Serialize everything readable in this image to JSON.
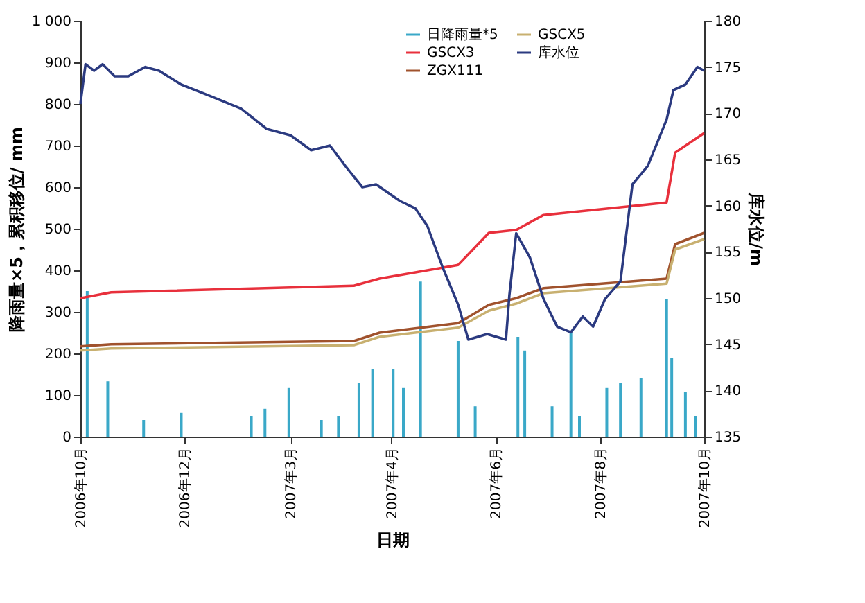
{
  "chart_data": {
    "type": "line",
    "xlabel": "日期",
    "ylabel": "降雨量×5，累积移位/ mm",
    "y2label": "库水位/m",
    "xlim": [
      "2006-10-01",
      "2007-10-01"
    ],
    "xticks": [
      {
        "value": "2006-10-01",
        "label": "2006年10月"
      },
      {
        "value": "2006-12-01",
        "label": "2006年12月"
      },
      {
        "value": "2007-02-01",
        "label": "2007年3月"
      },
      {
        "value": "2007-04-01",
        "label": "2007年4月"
      },
      {
        "value": "2007-06-01",
        "label": "2007年6月"
      },
      {
        "value": "2007-08-01",
        "label": "2007年8月"
      },
      {
        "value": "2007-10-01",
        "label": "2007年10月"
      }
    ],
    "ylim": [
      0,
      1000
    ],
    "yticks": [
      0,
      100,
      200,
      300,
      400,
      500,
      600,
      700,
      800,
      900,
      {
        "value": 1000,
        "label": "1 000"
      }
    ],
    "y2lim": [
      135,
      180
    ],
    "y2ticks": [
      135,
      140,
      145,
      150,
      155,
      160,
      165,
      170,
      175,
      180
    ],
    "legend": "top right",
    "grid": false,
    "marker": "none",
    "line_style": "solid",
    "series": [
      {
        "name": "日降雨量*5",
        "type": "bar",
        "color": "#3aa8c8",
        "x": [
          "2006-10-05",
          "2006-10-17",
          "2006-11-07",
          "2006-11-29",
          "2007-01-09",
          "2007-01-17",
          "2007-01-31",
          "2007-02-19",
          "2007-03-01",
          "2007-03-13",
          "2007-03-21",
          "2007-04-02",
          "2007-04-08",
          "2007-04-18",
          "2007-05-10",
          "2007-05-20",
          "2007-06-14",
          "2007-06-18",
          "2007-07-04",
          "2007-07-15",
          "2007-07-20",
          "2007-08-05",
          "2007-08-13",
          "2007-08-25",
          "2007-09-09",
          "2007-09-12",
          "2007-09-20",
          "2007-09-26"
        ],
        "values": [
          350,
          133,
          40,
          57,
          50,
          67,
          117,
          40,
          50,
          130,
          163,
          163,
          117,
          373,
          230,
          73,
          240,
          207,
          73,
          250,
          50,
          117,
          130,
          140,
          330,
          190,
          107,
          50
        ]
      },
      {
        "name": "GSCX3",
        "color": "#e8303c",
        "x": [
          "2006-10-01",
          "2006-10-19",
          "2007-03-10",
          "2007-03-25",
          "2007-05-10",
          "2007-05-28",
          "2007-06-13",
          "2007-06-29",
          "2007-09-09",
          "2007-09-14",
          "2007-10-01"
        ],
        "values": [
          333,
          347,
          363,
          380,
          413,
          490,
          497,
          533,
          563,
          683,
          730
        ]
      },
      {
        "name": "ZGX111",
        "color": "#a0522d",
        "x": [
          "2006-10-01",
          "2006-10-19",
          "2007-03-10",
          "2007-03-25",
          "2007-05-10",
          "2007-05-28",
          "2007-06-13",
          "2007-06-29",
          "2007-09-09",
          "2007-09-14",
          "2007-10-01"
        ],
        "values": [
          217,
          222,
          230,
          250,
          273,
          317,
          333,
          357,
          380,
          463,
          490
        ]
      },
      {
        "name": "GSCX5",
        "color": "#c8b070",
        "x": [
          "2006-10-01",
          "2006-10-19",
          "2007-03-10",
          "2007-03-25",
          "2007-05-10",
          "2007-05-28",
          "2007-06-13",
          "2007-06-29",
          "2007-09-09",
          "2007-09-14",
          "2007-10-01"
        ],
        "values": [
          207,
          212,
          220,
          240,
          262,
          303,
          320,
          345,
          368,
          450,
          475
        ]
      },
      {
        "name": "库水位",
        "axis": "y2",
        "color": "#2b3a80",
        "x": [
          "2006-10-01",
          "2006-10-04",
          "2006-10-09",
          "2006-10-14",
          "2006-10-21",
          "2006-10-29",
          "2006-11-08",
          "2006-11-16",
          "2006-11-29",
          "2006-12-14",
          "2007-01-03",
          "2007-01-18",
          "2007-02-01",
          "2007-02-13",
          "2007-02-24",
          "2007-03-05",
          "2007-03-15",
          "2007-03-23",
          "2007-04-06",
          "2007-04-15",
          "2007-04-22",
          "2007-05-01",
          "2007-05-10",
          "2007-05-16",
          "2007-05-27",
          "2007-06-07",
          "2007-06-09",
          "2007-06-13",
          "2007-06-21",
          "2007-06-29",
          "2007-07-07",
          "2007-07-15",
          "2007-07-22",
          "2007-07-28",
          "2007-08-04",
          "2007-08-13",
          "2007-08-20",
          "2007-08-29",
          "2007-09-09",
          "2007-09-13",
          "2007-09-20",
          "2007-09-27",
          "2007-10-01"
        ],
        "values": [
          171.0,
          175.3,
          174.6,
          175.3,
          174,
          174,
          175,
          174.6,
          173.1,
          172,
          170.5,
          168.3,
          167.6,
          166,
          166.5,
          164.3,
          162,
          162.3,
          160.5,
          159.7,
          157.8,
          153.3,
          149.3,
          145.5,
          146.1,
          145.5,
          150.3,
          157,
          154.4,
          149.9,
          146.9,
          146.3,
          148,
          146.9,
          149.9,
          151.8,
          162.3,
          164.3,
          169.3,
          172.5,
          173.1,
          175,
          174.6
        ]
      }
    ]
  }
}
